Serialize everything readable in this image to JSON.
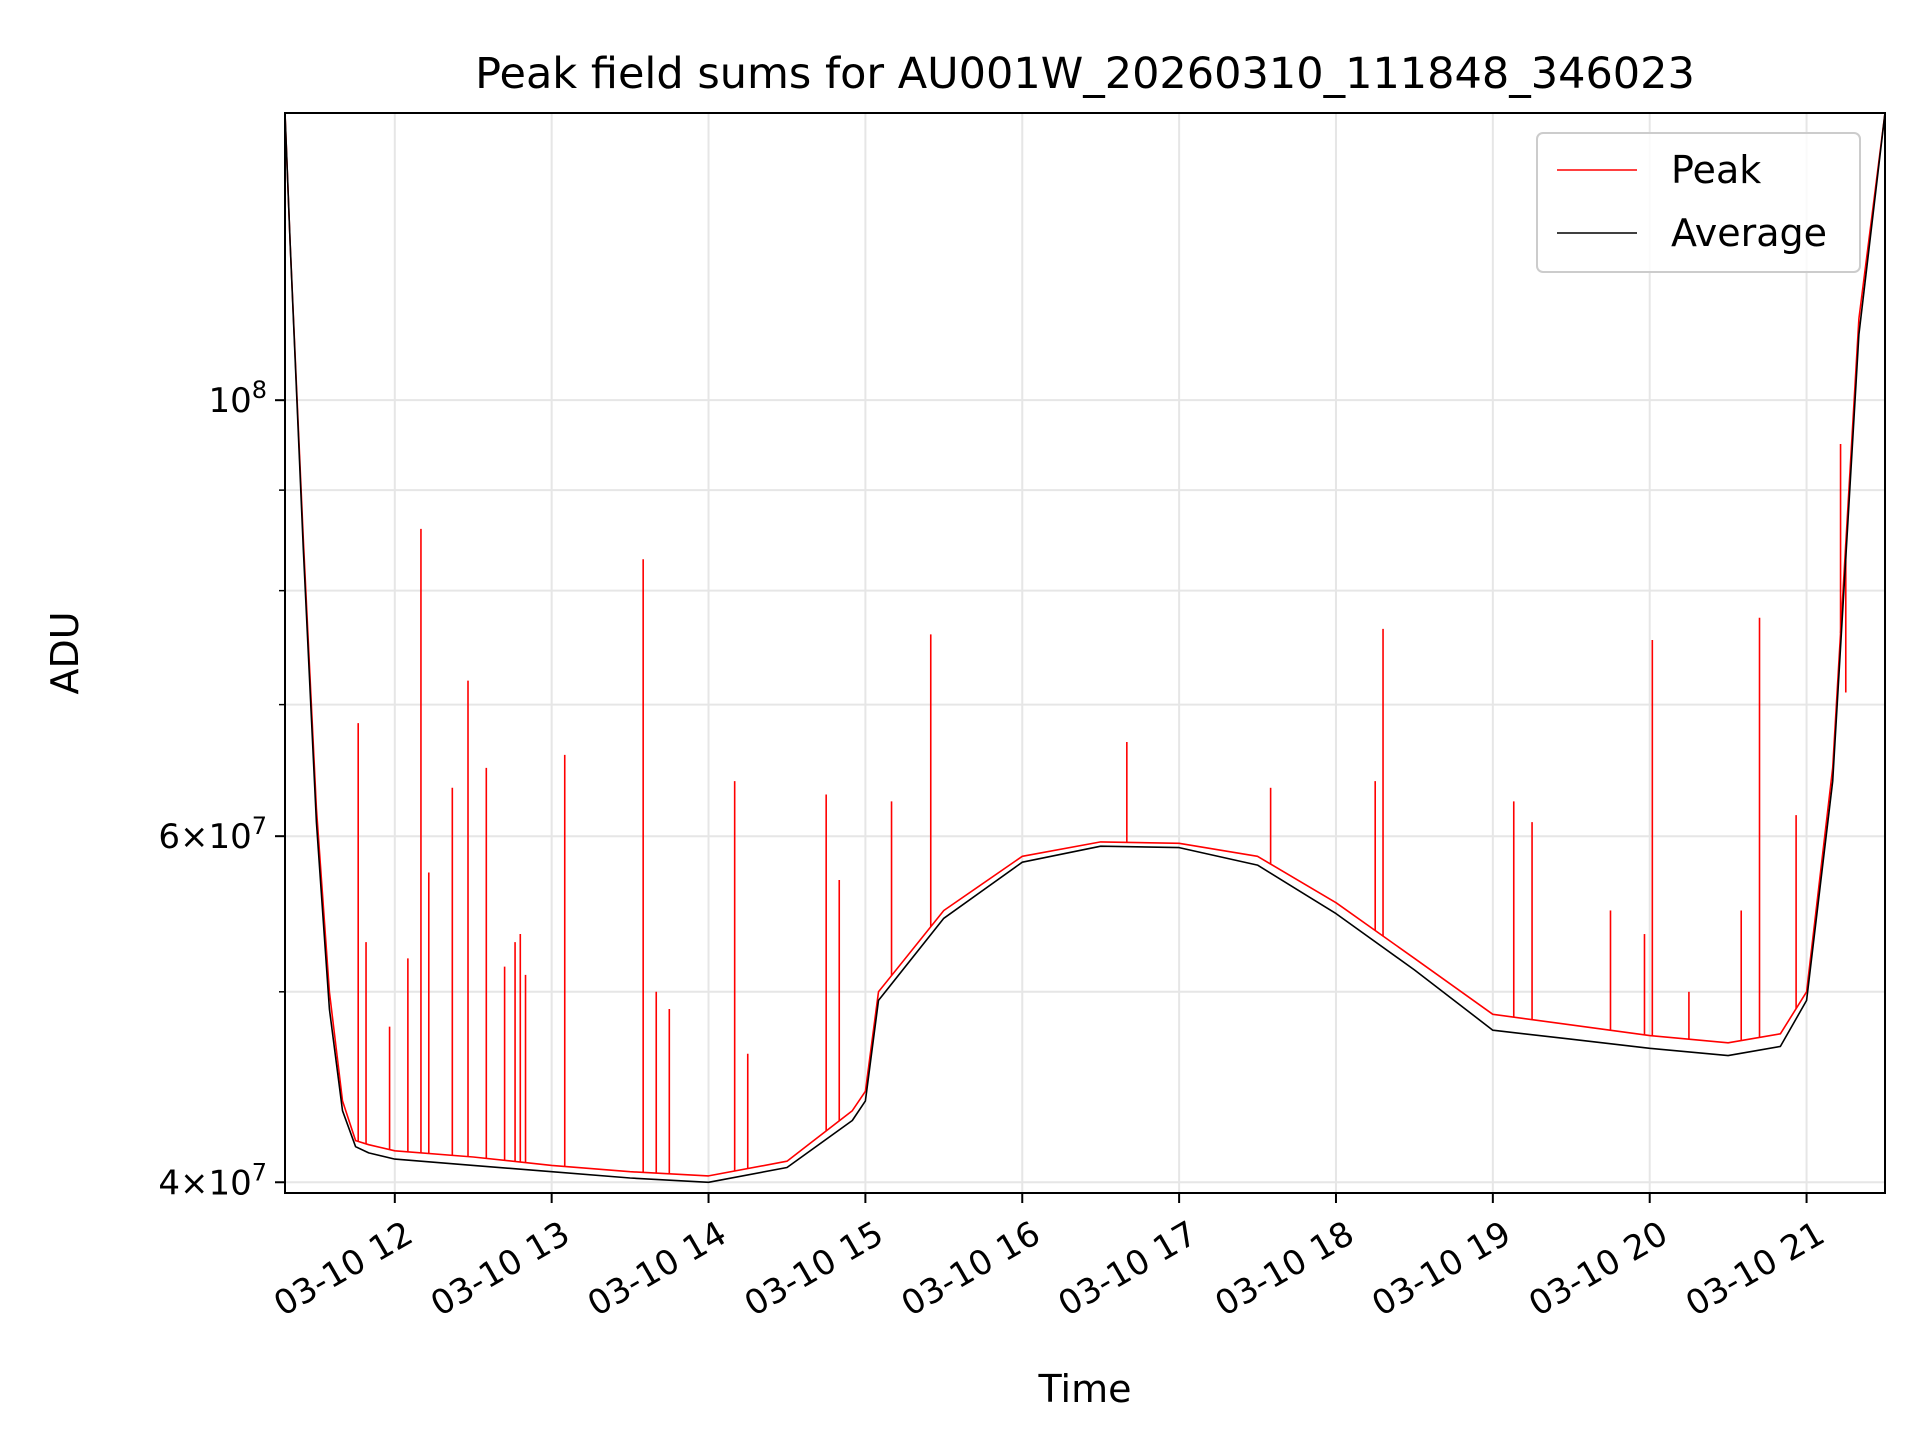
{
  "chart_data": {
    "type": "line",
    "title": "Peak field sums for AU001W_20260310_111848_346023",
    "xlabel": "Time",
    "ylabel": "ADU",
    "yscale": "log",
    "ylim": [
      39500000,
      140000000
    ],
    "xlim": [
      "2026-03-10 11:18",
      "2026-03-10 21:30"
    ],
    "x_ticks": [
      "03-10 12",
      "03-10 13",
      "03-10 14",
      "03-10 15",
      "03-10 16",
      "03-10 17",
      "03-10 18",
      "03-10 19",
      "03-10 20",
      "03-10 21"
    ],
    "x_tick_times": [
      "2026-03-10 12:00",
      "2026-03-10 13:00",
      "2026-03-10 14:00",
      "2026-03-10 15:00",
      "2026-03-10 16:00",
      "2026-03-10 17:00",
      "2026-03-10 18:00",
      "2026-03-10 19:00",
      "2026-03-10 20:00",
      "2026-03-10 21:00"
    ],
    "y_tick_labels": [
      {
        "value": 40000000,
        "mant": "4",
        "exp": "7"
      },
      {
        "value": 60000000,
        "mant": "6",
        "exp": "7"
      },
      {
        "value": 100000000,
        "mant": "",
        "exp": "8"
      }
    ],
    "y_minor_ticks": [
      50000000,
      70000000,
      80000000,
      90000000
    ],
    "grid": true,
    "legend_position": "upper right",
    "series": [
      {
        "name": "Peak",
        "color": "#ff0000",
        "times": [
          "2026-03-10 11:18",
          "2026-03-10 11:20",
          "2026-03-10 11:25",
          "2026-03-10 11:30",
          "2026-03-10 11:35",
          "2026-03-10 11:40",
          "2026-03-10 11:45",
          "2026-03-10 11:50",
          "2026-03-10 12:00",
          "2026-03-10 12:30",
          "2026-03-10 13:00",
          "2026-03-10 13:30",
          "2026-03-10 14:00",
          "2026-03-10 14:30",
          "2026-03-10 14:55",
          "2026-03-10 15:00",
          "2026-03-10 15:05",
          "2026-03-10 15:30",
          "2026-03-10 16:00",
          "2026-03-10 16:30",
          "2026-03-10 17:00",
          "2026-03-10 17:30",
          "2026-03-10 18:00",
          "2026-03-10 18:30",
          "2026-03-10 19:00",
          "2026-03-10 19:30",
          "2026-03-10 20:00",
          "2026-03-10 20:30",
          "2026-03-10 20:50",
          "2026-03-10 21:00",
          "2026-03-10 21:10",
          "2026-03-10 21:20",
          "2026-03-10 21:30"
        ],
        "values": [
          140000000,
          120000000,
          85000000,
          62000000,
          50000000,
          44000000,
          42000000,
          41800000,
          41500000,
          41200000,
          40800000,
          40500000,
          40300000,
          41000000,
          43500000,
          44500000,
          50000000,
          55000000,
          58600000,
          59600000,
          59500000,
          58600000,
          55500000,
          52000000,
          48700000,
          48100000,
          47500000,
          47100000,
          47600000,
          50000000,
          65000000,
          110000000,
          140000000
        ],
        "spikes": [
          {
            "time": "2026-03-10 11:46",
            "value": 68500000
          },
          {
            "time": "2026-03-10 11:49",
            "value": 53000000
          },
          {
            "time": "2026-03-10 11:58",
            "value": 48000000
          },
          {
            "time": "2026-03-10 12:05",
            "value": 52000000
          },
          {
            "time": "2026-03-10 12:10",
            "value": 86000000
          },
          {
            "time": "2026-03-10 12:13",
            "value": 57500000
          },
          {
            "time": "2026-03-10 12:22",
            "value": 63500000
          },
          {
            "time": "2026-03-10 12:28",
            "value": 72000000
          },
          {
            "time": "2026-03-10 12:35",
            "value": 65000000
          },
          {
            "time": "2026-03-10 12:42",
            "value": 51500000
          },
          {
            "time": "2026-03-10 12:46",
            "value": 53000000
          },
          {
            "time": "2026-03-10 12:48",
            "value": 53500000
          },
          {
            "time": "2026-03-10 12:50",
            "value": 51000000
          },
          {
            "time": "2026-03-10 13:05",
            "value": 66000000
          },
          {
            "time": "2026-03-10 13:35",
            "value": 83000000
          },
          {
            "time": "2026-03-10 13:40",
            "value": 50000000
          },
          {
            "time": "2026-03-10 13:45",
            "value": 49000000
          },
          {
            "time": "2026-03-10 14:10",
            "value": 64000000
          },
          {
            "time": "2026-03-10 14:15",
            "value": 46500000
          },
          {
            "time": "2026-03-10 14:45",
            "value": 63000000
          },
          {
            "time": "2026-03-10 14:50",
            "value": 57000000
          },
          {
            "time": "2026-03-10 15:10",
            "value": 62500000
          },
          {
            "time": "2026-03-10 15:25",
            "value": 76000000
          },
          {
            "time": "2026-03-10 16:40",
            "value": 67000000
          },
          {
            "time": "2026-03-10 17:35",
            "value": 63500000
          },
          {
            "time": "2026-03-10 18:15",
            "value": 64000000
          },
          {
            "time": "2026-03-10 18:18",
            "value": 76500000
          },
          {
            "time": "2026-03-10 19:08",
            "value": 62500000
          },
          {
            "time": "2026-03-10 19:15",
            "value": 61000000
          },
          {
            "time": "2026-03-10 19:45",
            "value": 55000000
          },
          {
            "time": "2026-03-10 19:58",
            "value": 53500000
          },
          {
            "time": "2026-03-10 20:01",
            "value": 75500000
          },
          {
            "time": "2026-03-10 20:15",
            "value": 50000000
          },
          {
            "time": "2026-03-10 20:35",
            "value": 55000000
          },
          {
            "time": "2026-03-10 20:42",
            "value": 77500000
          },
          {
            "time": "2026-03-10 20:56",
            "value": 61500000
          },
          {
            "time": "2026-03-10 21:13",
            "value": 95000000
          },
          {
            "time": "2026-03-10 21:15",
            "value": 71000000
          }
        ]
      },
      {
        "name": "Average",
        "color": "#000000",
        "times": [
          "2026-03-10 11:18",
          "2026-03-10 11:20",
          "2026-03-10 11:25",
          "2026-03-10 11:30",
          "2026-03-10 11:35",
          "2026-03-10 11:40",
          "2026-03-10 11:45",
          "2026-03-10 11:50",
          "2026-03-10 12:00",
          "2026-03-10 12:30",
          "2026-03-10 13:00",
          "2026-03-10 13:30",
          "2026-03-10 14:00",
          "2026-03-10 14:30",
          "2026-03-10 14:55",
          "2026-03-10 15:00",
          "2026-03-10 15:05",
          "2026-03-10 15:30",
          "2026-03-10 16:00",
          "2026-03-10 16:30",
          "2026-03-10 17:00",
          "2026-03-10 17:30",
          "2026-03-10 18:00",
          "2026-03-10 18:30",
          "2026-03-10 19:00",
          "2026-03-10 19:30",
          "2026-03-10 20:00",
          "2026-03-10 20:30",
          "2026-03-10 20:50",
          "2026-03-10 21:00",
          "2026-03-10 21:10",
          "2026-03-10 21:20",
          "2026-03-10 21:30"
        ],
        "values": [
          140000000,
          120000000,
          84000000,
          61000000,
          49000000,
          43500000,
          41700000,
          41400000,
          41100000,
          40800000,
          40500000,
          40200000,
          40000000,
          40700000,
          43000000,
          44000000,
          49500000,
          54500000,
          58200000,
          59300000,
          59200000,
          58000000,
          54800000,
          51300000,
          47800000,
          47300000,
          46800000,
          46400000,
          46900000,
          49500000,
          64000000,
          108000000,
          140000000
        ]
      }
    ]
  }
}
